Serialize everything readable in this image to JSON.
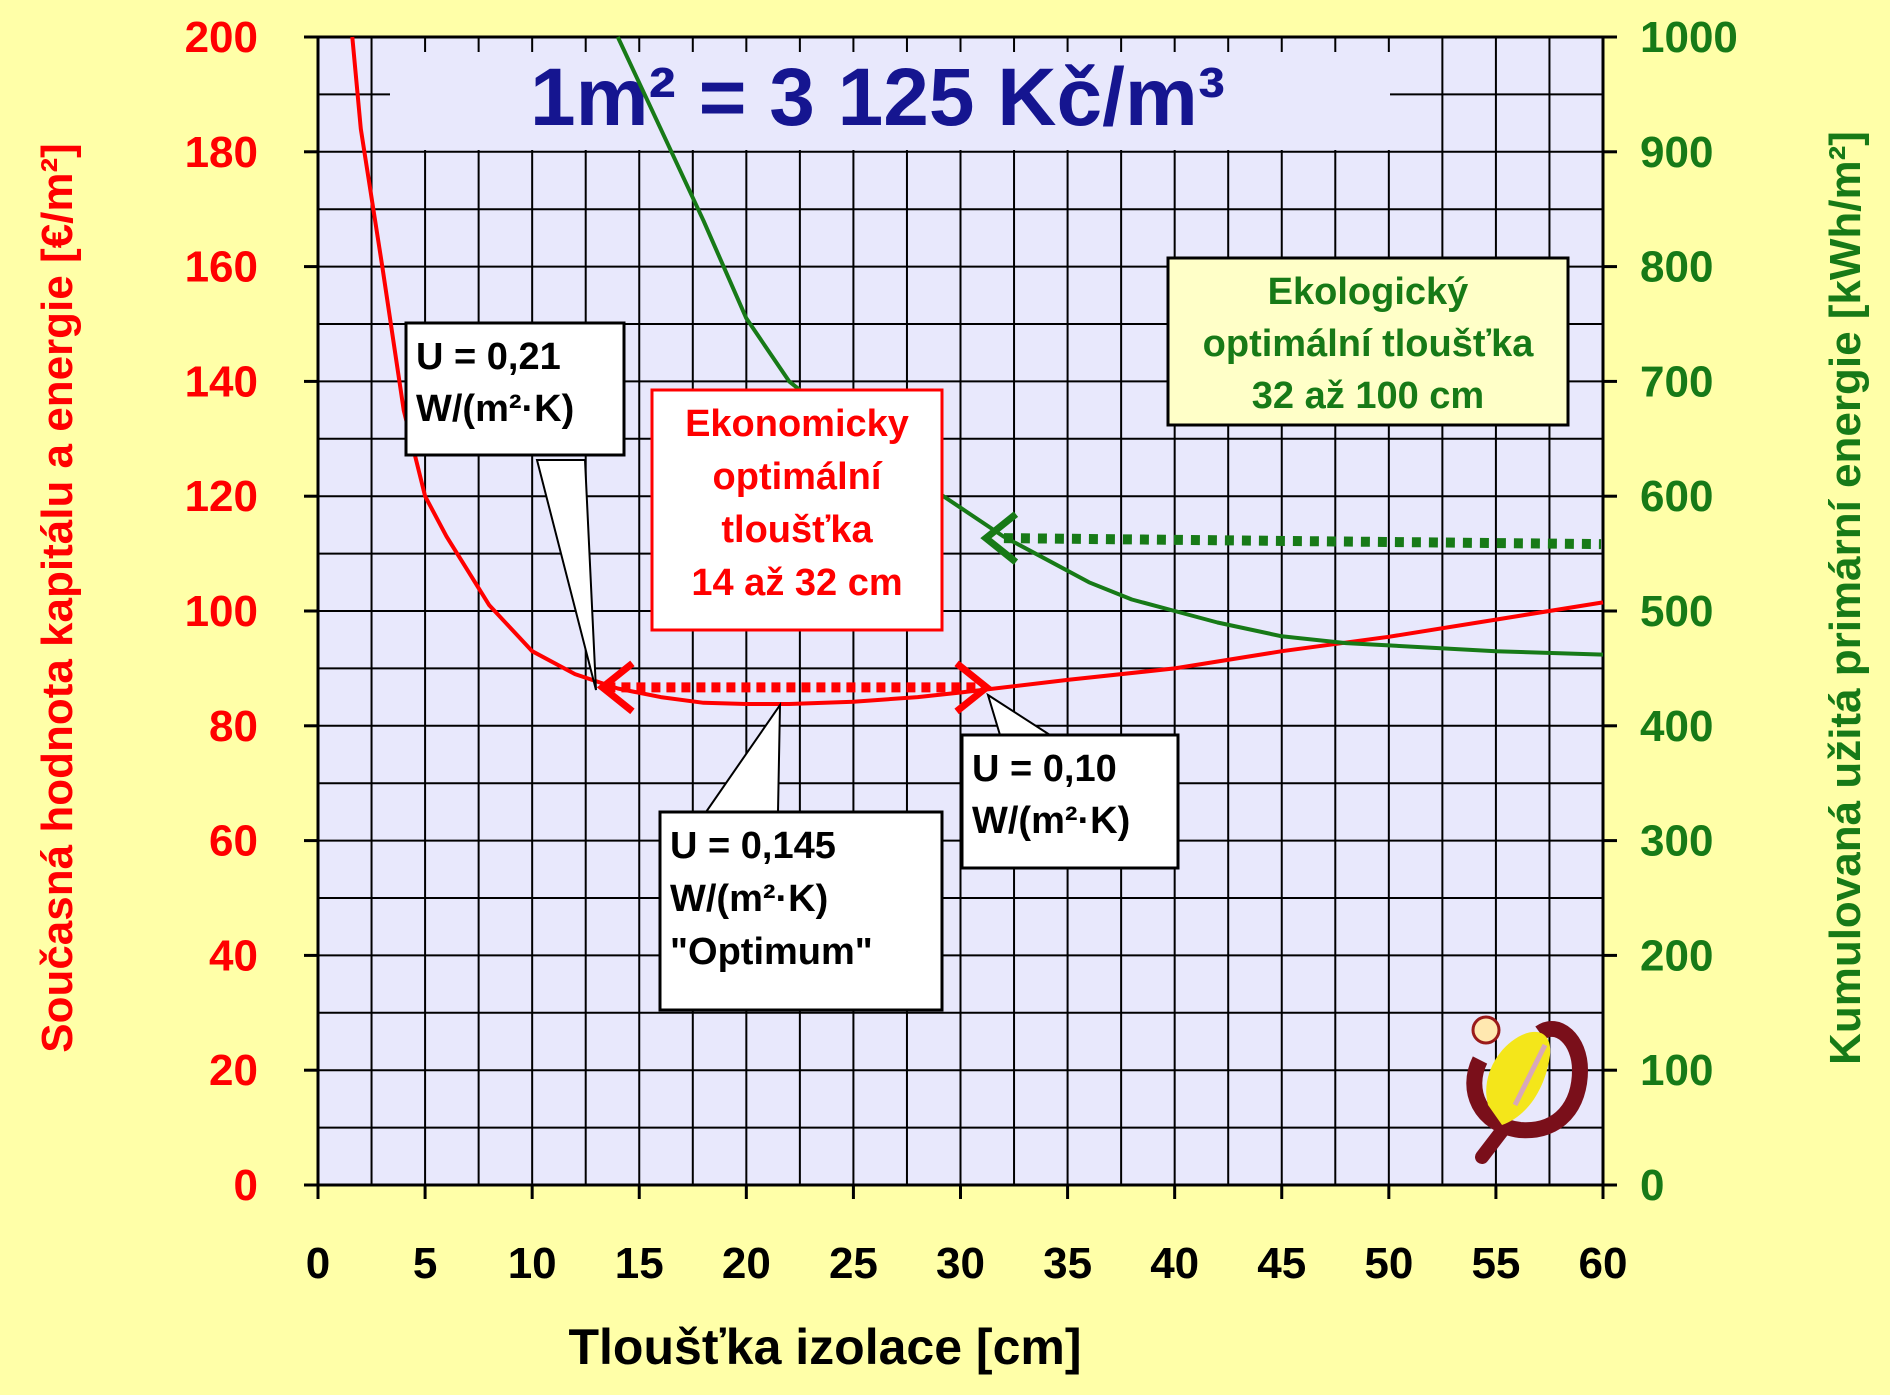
{
  "chart_data": {
    "type": "line",
    "title": "1m² = 3 125 Kč/m³",
    "xlabel": "Tloušťka izolace [cm]",
    "ylabel_left": "Současná hodnota kapitálu a energie [€/m²]",
    "ylabel_right": "Kumulovaná užitá primární energie [kWh/m²]",
    "xlim": [
      0,
      60
    ],
    "ylim_left": [
      0,
      200
    ],
    "ylim_right": [
      0,
      1000
    ],
    "x_ticks": [
      "0",
      "5",
      "10",
      "15",
      "20",
      "25",
      "30",
      "35",
      "40",
      "45",
      "50",
      "55",
      "60"
    ],
    "y_left_ticks": [
      "0",
      "20",
      "40",
      "60",
      "80",
      "100",
      "120",
      "140",
      "160",
      "180",
      "200"
    ],
    "y_right_ticks": [
      "0",
      "100",
      "200",
      "300",
      "400",
      "500",
      "600",
      "700",
      "800",
      "900",
      "1000"
    ],
    "grid": true,
    "series": [
      {
        "axis": "left",
        "color": "#FF0000",
        "x": [
          1.6,
          2,
          3,
          4,
          5,
          6,
          7,
          8,
          10,
          12,
          14,
          16,
          18,
          20,
          22,
          25,
          28,
          30,
          35,
          40,
          45,
          50,
          55,
          60
        ],
        "y": [
          200,
          184,
          160,
          135,
          120,
          113,
          107,
          101,
          93,
          89,
          86.5,
          85,
          84,
          83.8,
          83.8,
          84.2,
          85,
          85.8,
          88,
          90,
          93,
          95.5,
          98.5,
          101.5
        ]
      },
      {
        "axis": "right",
        "color": "#177A17",
        "x": [
          14,
          16,
          18,
          20,
          22,
          24,
          26,
          28,
          30,
          32,
          34,
          36,
          38,
          40,
          42,
          45,
          48,
          50,
          55,
          60
        ],
        "y": [
          1000,
          920,
          840,
          755,
          700,
          670,
          640,
          615,
          590,
          565,
          545,
          525,
          510,
          500,
          490,
          478,
          472,
          470,
          465,
          462
        ]
      }
    ],
    "annotations": {
      "u021": [
        "U = 0,21",
        "W/(m²·K)"
      ],
      "u010": [
        "U = 0,10",
        "W/(m²·K)"
      ],
      "u0145": [
        "U = 0,145",
        "W/(m²·K)",
        "\"Optimum\""
      ],
      "econ": [
        "Ekonomicky",
        "optimální",
        "tloušťka",
        "14 až 32 cm"
      ],
      "eco": [
        "Ekologický",
        "optimální tloušťka",
        "32 až 100 cm"
      ]
    },
    "ranges": {
      "economic": {
        "from": 13,
        "to": 31.5,
        "y": 86,
        "axis": "left"
      },
      "ecological_arrow": {
        "from": 60,
        "to": 31,
        "y": 560,
        "axis": "right"
      }
    },
    "colors": {
      "background": "#FFFFA8",
      "plot": "#E8E8FC",
      "left": "#FF0000",
      "right": "#177A17"
    }
  }
}
